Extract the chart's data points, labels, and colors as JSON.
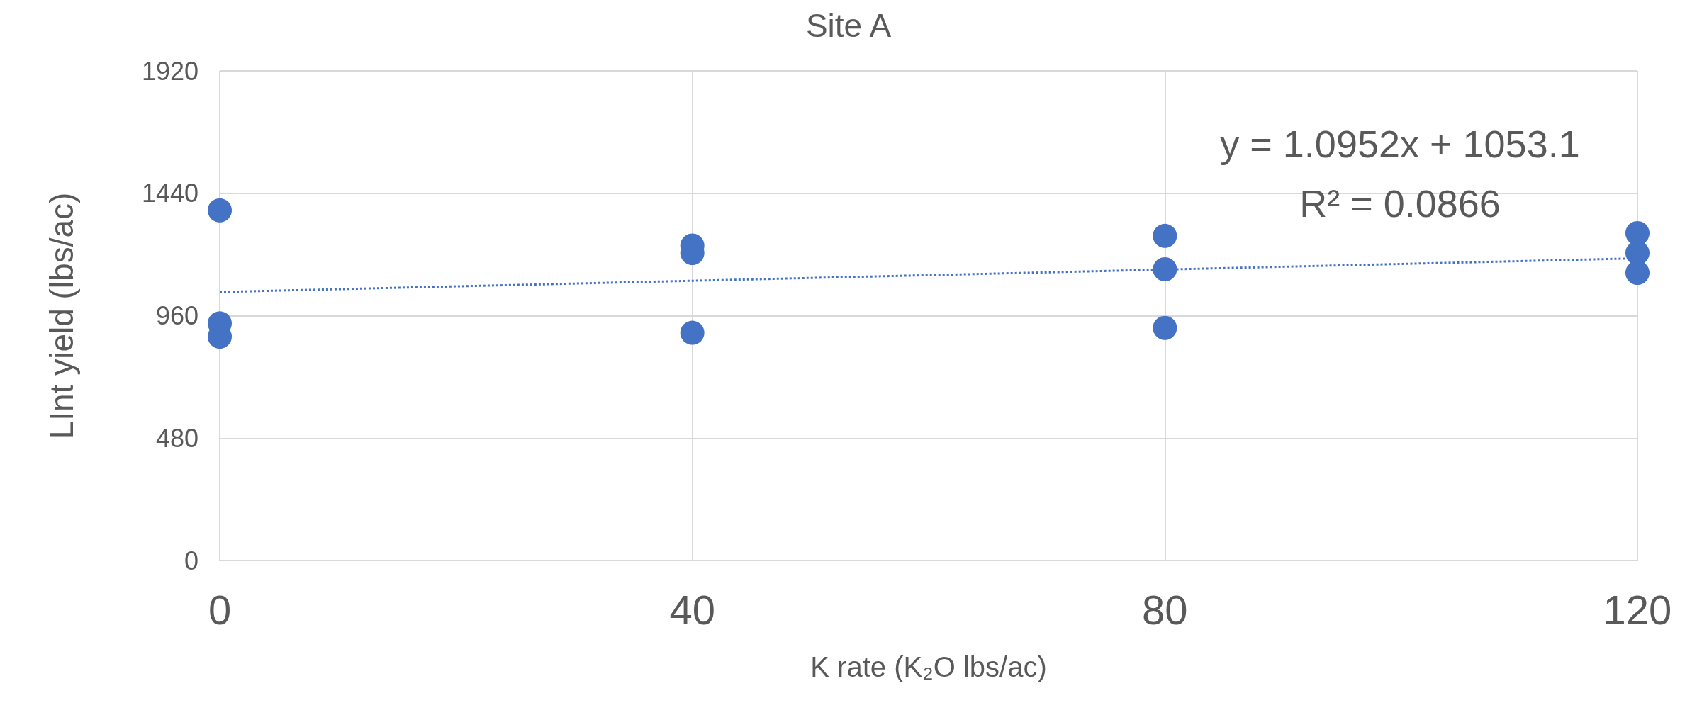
{
  "chart_data": {
    "type": "scatter",
    "title": "Site A",
    "xlabel": "K rate (K₂O lbs/ac)",
    "ylabel": "LInt yield (lbs/ac)",
    "xlim": [
      0,
      120
    ],
    "xticks": [
      0,
      40,
      80,
      120
    ],
    "ylim": [
      0,
      1920
    ],
    "yticks": [
      0,
      480,
      960,
      1440,
      1920
    ],
    "grid": true,
    "series": [
      {
        "color": "#4472c4",
        "marker": "circle",
        "x": [
          0,
          0,
          0,
          40,
          40,
          40,
          80,
          80,
          80,
          120,
          120,
          120
        ],
        "values": [
          1373,
          930,
          878,
          1235,
          1206,
          893,
          1273,
          1142,
          912,
          1284,
          1206,
          1128
        ]
      },
      {
        "type": "line",
        "color": "#4472c4",
        "marker": "none",
        "line_style": "dotted",
        "x": [
          0,
          120
        ],
        "values": [
          1053,
          1185
        ]
      }
    ],
    "annotations": [
      "y = 1.0952x + 1053.1",
      "R² = 0.0866"
    ]
  }
}
